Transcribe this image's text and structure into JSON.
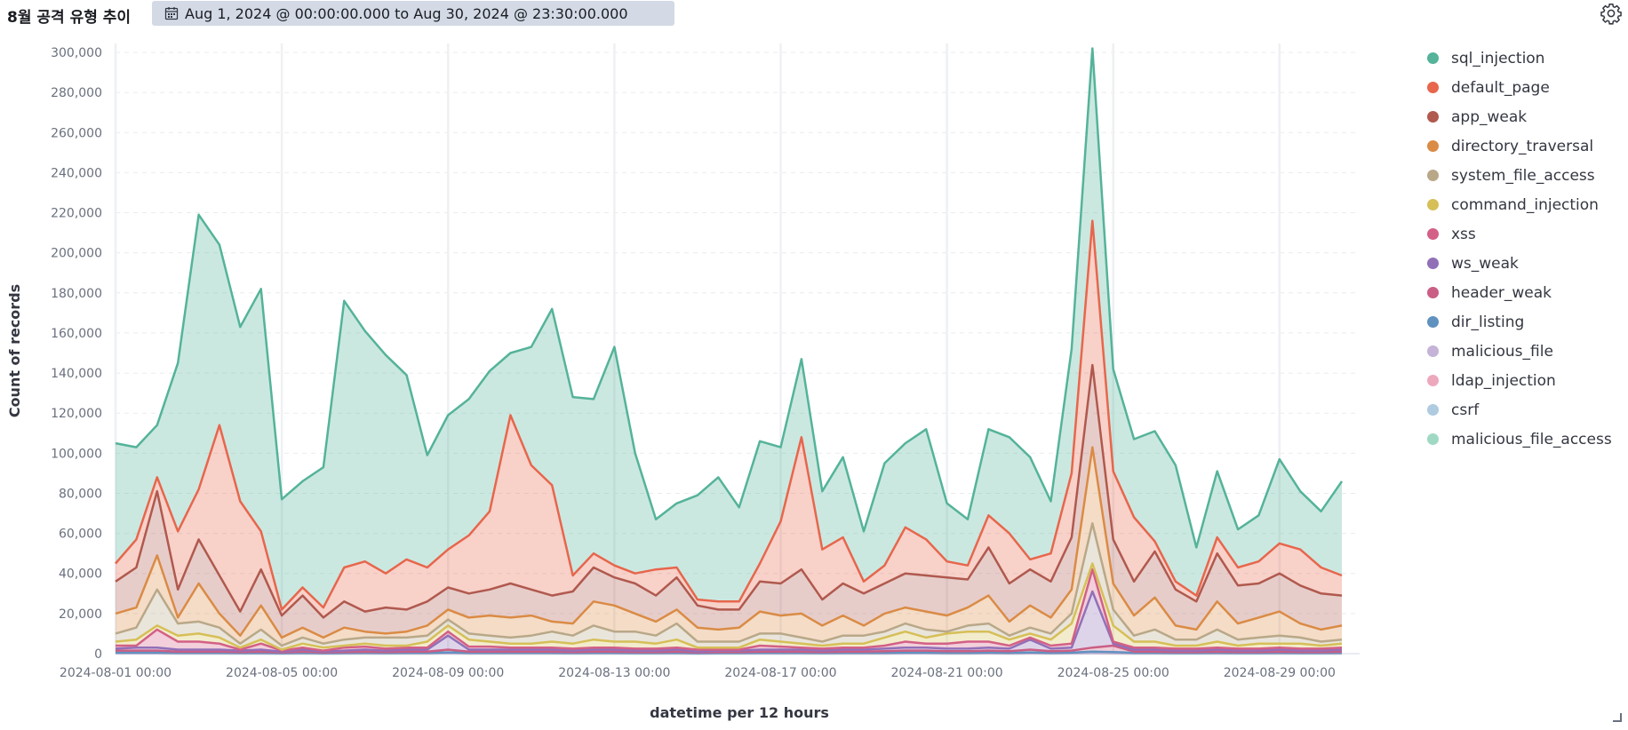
{
  "header": {
    "title": "8월 공격 유형 추이",
    "time_range": "Aug 1, 2024 @ 00:00:00.000 to Aug 30, 2024 @ 23:30:00.000"
  },
  "icons": {
    "calendar": "calendar-icon",
    "settings": "gear-icon",
    "resize": "resize-handle-icon"
  },
  "chart_data": {
    "type": "area",
    "stacked": true,
    "xlabel": "datetime per 12 hours",
    "ylabel": "Count of records",
    "ylim": [
      0,
      305000
    ],
    "grid": true,
    "legend_position": "right",
    "x_ticks": [
      "2024-08-01 00:00",
      "2024-08-05 00:00",
      "2024-08-09 00:00",
      "2024-08-13 00:00",
      "2024-08-17 00:00",
      "2024-08-21 00:00",
      "2024-08-25 00:00",
      "2024-08-29 00:00"
    ],
    "y_ticks": [
      "0",
      "20,000",
      "40,000",
      "60,000",
      "80,000",
      "100,000",
      "120,000",
      "140,000",
      "160,000",
      "180,000",
      "200,000",
      "220,000",
      "240,000",
      "260,000",
      "280,000",
      "300,000"
    ],
    "x_start": "2024-08-01 00:00",
    "x_step_hours": 12,
    "cumulative_totals": {
      "sql_injection": [
        105000,
        103000,
        114000,
        145000,
        219000,
        204000,
        163000,
        182000,
        77000,
        86000,
        93000,
        176000,
        161000,
        149000,
        139000,
        99000,
        119000,
        127000,
        141000,
        150000,
        153000,
        172000,
        128000,
        127000,
        153000,
        100000,
        67000,
        75000,
        79000,
        88000,
        73000,
        106000,
        103000,
        147000,
        81000,
        98000,
        61000,
        95000,
        105000,
        112000,
        75000,
        67000,
        112000,
        108000,
        98000,
        76000,
        152000,
        302000,
        142000,
        107000,
        111000,
        94000,
        53000,
        91000,
        62000,
        69000,
        97000,
        81000,
        71000,
        86000
      ],
      "default_page": [
        45000,
        57000,
        88000,
        61000,
        82000,
        114000,
        76000,
        61000,
        22000,
        33000,
        23000,
        43000,
        46000,
        40000,
        47000,
        43000,
        52000,
        59000,
        71000,
        119000,
        94000,
        84000,
        39000,
        50000,
        44000,
        40000,
        42000,
        43000,
        27000,
        26000,
        26000,
        45000,
        66000,
        108000,
        52000,
        58000,
        36000,
        44000,
        63000,
        57000,
        46000,
        44000,
        69000,
        60000,
        47000,
        50000,
        90000,
        216000,
        91000,
        68000,
        56000,
        36000,
        29000,
        58000,
        43000,
        46000,
        55000,
        52000,
        43000,
        39000
      ],
      "app_weak": [
        36000,
        43000,
        81000,
        32000,
        57000,
        39000,
        21000,
        42000,
        19000,
        29000,
        18000,
        26000,
        21000,
        23000,
        22000,
        26000,
        33000,
        30000,
        32000,
        35000,
        32000,
        29000,
        31000,
        43000,
        38000,
        35000,
        29000,
        38000,
        24000,
        22000,
        22000,
        36000,
        35000,
        42000,
        27000,
        35000,
        30000,
        35000,
        40000,
        39000,
        38000,
        37000,
        53000,
        35000,
        42000,
        36000,
        58000,
        144000,
        57000,
        36000,
        51000,
        32000,
        26000,
        50000,
        34000,
        35000,
        40000,
        34000,
        30000,
        29000
      ],
      "directory_traversal": [
        20000,
        23000,
        49000,
        18000,
        35000,
        20000,
        9000,
        24000,
        8000,
        13000,
        8000,
        13000,
        11000,
        10000,
        11000,
        14000,
        22000,
        18000,
        19000,
        18000,
        19000,
        16000,
        15000,
        26000,
        24000,
        20000,
        16000,
        22000,
        13000,
        12000,
        13000,
        21000,
        19000,
        20000,
        14000,
        19000,
        14000,
        20000,
        23000,
        21000,
        19000,
        23000,
        29000,
        16000,
        24000,
        18000,
        32000,
        103000,
        35000,
        19000,
        28000,
        14000,
        12000,
        26000,
        15000,
        18000,
        21000,
        15000,
        12000,
        14000
      ],
      "system_file_access": [
        10000,
        13000,
        32000,
        15000,
        16000,
        13000,
        5000,
        12000,
        4000,
        8000,
        5000,
        7000,
        8000,
        8000,
        8000,
        9000,
        17000,
        10000,
        9000,
        8000,
        9000,
        11000,
        9000,
        14000,
        11000,
        11000,
        9000,
        15000,
        6000,
        6000,
        6000,
        10000,
        10000,
        8000,
        6000,
        9000,
        9000,
        11000,
        15000,
        12000,
        11000,
        14000,
        15000,
        9000,
        13000,
        10000,
        20000,
        65000,
        22000,
        9000,
        12000,
        7000,
        7000,
        12000,
        7000,
        8000,
        9000,
        8000,
        6000,
        7000
      ],
      "command_injection": [
        6000,
        7000,
        14000,
        9000,
        10000,
        8000,
        3000,
        7000,
        2000,
        5000,
        3000,
        4000,
        5000,
        4000,
        4000,
        6000,
        14000,
        7000,
        6000,
        5000,
        5000,
        6000,
        5000,
        7000,
        6000,
        6000,
        5000,
        7000,
        3000,
        3000,
        3000,
        7000,
        6000,
        5000,
        4000,
        5000,
        5000,
        8000,
        11000,
        8000,
        10000,
        11000,
        11000,
        7000,
        10000,
        7000,
        15000,
        45000,
        14000,
        6000,
        6000,
        4000,
        4000,
        6000,
        4000,
        5000,
        5000,
        5000,
        4000,
        5000
      ],
      "xss": [
        4000,
        4000,
        12000,
        6000,
        6000,
        5000,
        2000,
        5000,
        1500,
        3000,
        1500,
        3000,
        3500,
        2500,
        3000,
        3000,
        11000,
        3500,
        3500,
        3000,
        3000,
        3000,
        2500,
        3000,
        3000,
        2500,
        2500,
        3000,
        2000,
        2000,
        2000,
        4000,
        3500,
        3000,
        2500,
        3000,
        3000,
        4000,
        6000,
        5000,
        5000,
        6000,
        6000,
        4000,
        8000,
        4000,
        5000,
        42000,
        6000,
        3000,
        3000,
        2500,
        2500,
        3000,
        2500,
        2500,
        3000,
        2500,
        2500,
        3000
      ],
      "ws_weak": [
        2500,
        3000,
        3000,
        2000,
        2000,
        2000,
        1500,
        2000,
        1000,
        2000,
        1000,
        1500,
        2000,
        1500,
        2000,
        2000,
        9000,
        2000,
        2000,
        2000,
        2000,
        2000,
        1500,
        2000,
        2000,
        1500,
        1500,
        2000,
        1000,
        1500,
        1500,
        2000,
        2000,
        2000,
        1500,
        2000,
        2000,
        2500,
        3000,
        3000,
        2500,
        2500,
        3000,
        2500,
        7000,
        2500,
        3000,
        31000,
        5000,
        2000,
        2000,
        1500,
        1500,
        2000,
        1500,
        1500,
        2000,
        1500,
        1500,
        2000
      ],
      "header_weak": [
        1500,
        1500,
        1500,
        1000,
        1000,
        1000,
        800,
        1000,
        600,
        1000,
        600,
        800,
        1000,
        800,
        1000,
        1000,
        2000,
        1000,
        1000,
        1000,
        1000,
        1000,
        800,
        1000,
        1000,
        800,
        800,
        1000,
        600,
        800,
        800,
        1000,
        1000,
        1000,
        800,
        1000,
        1000,
        1200,
        1500,
        1500,
        1200,
        1200,
        1500,
        1200,
        2000,
        1200,
        1500,
        3000,
        4000,
        1000,
        1000,
        800,
        800,
        1000,
        800,
        800,
        1000,
        800,
        800,
        1000
      ],
      "dir_listing": [
        500,
        500,
        500,
        400,
        400,
        400,
        300,
        400,
        200,
        400,
        200,
        300,
        400,
        300,
        400,
        400,
        600,
        400,
        400,
        400,
        400,
        400,
        300,
        400,
        400,
        300,
        300,
        400,
        200,
        300,
        300,
        400,
        400,
        400,
        300,
        400,
        400,
        400,
        500,
        500,
        400,
        400,
        500,
        400,
        600,
        400,
        500,
        1000,
        800,
        400,
        400,
        300,
        300,
        400,
        300,
        300,
        400,
        300,
        300,
        400
      ],
      "malicious_file": [
        300,
        300,
        300,
        200,
        200,
        200,
        150,
        200,
        100,
        200,
        100,
        150,
        200,
        150,
        200,
        200,
        300,
        200,
        200,
        200,
        200,
        200,
        150,
        200,
        200,
        150,
        150,
        200,
        100,
        150,
        150,
        200,
        200,
        200,
        150,
        200,
        200,
        200,
        300,
        300,
        200,
        200,
        300,
        200,
        300,
        200,
        300,
        500,
        400,
        200,
        200,
        150,
        150,
        200,
        150,
        150,
        200,
        150,
        150,
        200
      ],
      "ldap_injection": [
        200,
        200,
        200,
        100,
        100,
        100,
        100,
        100,
        50,
        100,
        50,
        100,
        100,
        100,
        100,
        100,
        200,
        100,
        100,
        100,
        100,
        100,
        100,
        100,
        100,
        100,
        100,
        100,
        50,
        100,
        100,
        100,
        100,
        100,
        100,
        100,
        100,
        100,
        200,
        200,
        100,
        100,
        200,
        100,
        200,
        100,
        200,
        300,
        200,
        100,
        100,
        100,
        100,
        100,
        100,
        100,
        100,
        100,
        100,
        100
      ],
      "csrf": [
        100,
        100,
        100,
        50,
        50,
        50,
        50,
        50,
        20,
        50,
        20,
        50,
        50,
        50,
        50,
        50,
        100,
        50,
        50,
        50,
        50,
        50,
        50,
        50,
        50,
        50,
        50,
        50,
        20,
        50,
        50,
        50,
        50,
        50,
        50,
        50,
        50,
        50,
        100,
        100,
        50,
        50,
        100,
        50,
        100,
        50,
        100,
        150,
        100,
        50,
        50,
        50,
        50,
        50,
        50,
        50,
        50,
        50,
        50,
        50
      ],
      "malicious_file_access": [
        50,
        50,
        50,
        20,
        20,
        20,
        20,
        20,
        10,
        20,
        10,
        20,
        20,
        20,
        20,
        20,
        50,
        20,
        20,
        20,
        20,
        20,
        20,
        20,
        20,
        20,
        20,
        20,
        10,
        20,
        20,
        20,
        20,
        20,
        20,
        20,
        20,
        20,
        50,
        50,
        20,
        20,
        50,
        20,
        50,
        20,
        50,
        80,
        50,
        20,
        20,
        20,
        20,
        20,
        20,
        20,
        20,
        20,
        20,
        20
      ]
    },
    "series": [
      {
        "name": "sql_injection",
        "color": "#54b399"
      },
      {
        "name": "default_page",
        "color": "#e7664c"
      },
      {
        "name": "app_weak",
        "color": "#b0594e"
      },
      {
        "name": "directory_traversal",
        "color": "#da8b45"
      },
      {
        "name": "system_file_access",
        "color": "#b9a888"
      },
      {
        "name": "command_injection",
        "color": "#d6bf57"
      },
      {
        "name": "xss",
        "color": "#d36086"
      },
      {
        "name": "ws_weak",
        "color": "#9170b8"
      },
      {
        "name": "header_weak",
        "color": "#ca5e84"
      },
      {
        "name": "dir_listing",
        "color": "#6092c0"
      },
      {
        "name": "malicious_file",
        "color": "#c5b3d8"
      },
      {
        "name": "ldap_injection",
        "color": "#eea8be"
      },
      {
        "name": "csrf",
        "color": "#aecbe0"
      },
      {
        "name": "malicious_file_access",
        "color": "#9fd9c4"
      }
    ]
  }
}
